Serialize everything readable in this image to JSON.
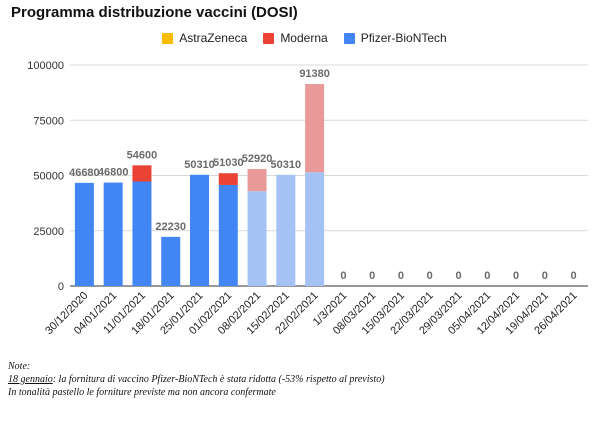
{
  "chart_data": {
    "type": "bar",
    "stacked": true,
    "title": "Programma distribuzione vaccini (DOSI)",
    "categories": [
      "30/12/2020",
      "04/01/2021",
      "11/01/2021",
      "18/01/2021",
      "25/01/2021",
      "01/02/2021",
      "08/02/2021",
      "15/02/2021",
      "22/02/2021",
      "1/3/2021",
      "08/03/2021",
      "15/03/2021",
      "22/03/2021",
      "29/03/2021",
      "05/04/2021",
      "12/04/2021",
      "19/04/2021",
      "26/04/2021"
    ],
    "series": [
      {
        "name": "AstraZeneca",
        "color": "#fbbc04",
        "values": [
          0,
          0,
          0,
          0,
          0,
          0,
          0,
          0,
          0,
          0,
          0,
          0,
          0,
          0,
          0,
          0,
          0,
          0
        ]
      },
      {
        "name": "Moderna",
        "color": "#ea4335",
        "values": [
          0,
          0,
          7320,
          0,
          0,
          5310,
          10000,
          0,
          39890,
          0,
          0,
          0,
          0,
          0,
          0,
          0,
          0,
          0
        ]
      },
      {
        "name": "Pfizer-BioNTech",
        "color": "#4285f4",
        "values": [
          46680,
          46800,
          47280,
          22230,
          50310,
          45720,
          42920,
          50310,
          51490,
          0,
          0,
          0,
          0,
          0,
          0,
          0,
          0,
          0
        ]
      }
    ],
    "projected_from_index": 6,
    "projected_colors": {
      "Moderna": "#ea9999",
      "Pfizer-BioNTech": "#a4c2f4"
    },
    "totals": [
      46680,
      46800,
      54600,
      22230,
      50310,
      51030,
      52920,
      50310,
      91380,
      0,
      0,
      0,
      0,
      0,
      0,
      0,
      0,
      0
    ],
    "total_labels": [
      "46680",
      "46800",
      "54600",
      "22230",
      "50310",
      "51030",
      "52920",
      "50310",
      "91380",
      "0",
      "0",
      "0",
      "0",
      "0",
      "0",
      "0",
      "0",
      "0"
    ],
    "ylim": [
      0,
      100000
    ],
    "yticks": [
      "0",
      "25000",
      "50000",
      "75000",
      "100000"
    ],
    "ytick_values": [
      0,
      25000,
      50000,
      75000,
      100000
    ],
    "grid": true,
    "legend_position": "top"
  },
  "notes": {
    "heading": "Note:",
    "line1_date": "18 gennaio",
    "line1_text": ": la fornitura di vaccino Pfizer-BioNTech è stata ridotta (-53% rispetto al previsto)",
    "line2": "In tonalità pastello le forniture previste ma non ancora confermate"
  }
}
